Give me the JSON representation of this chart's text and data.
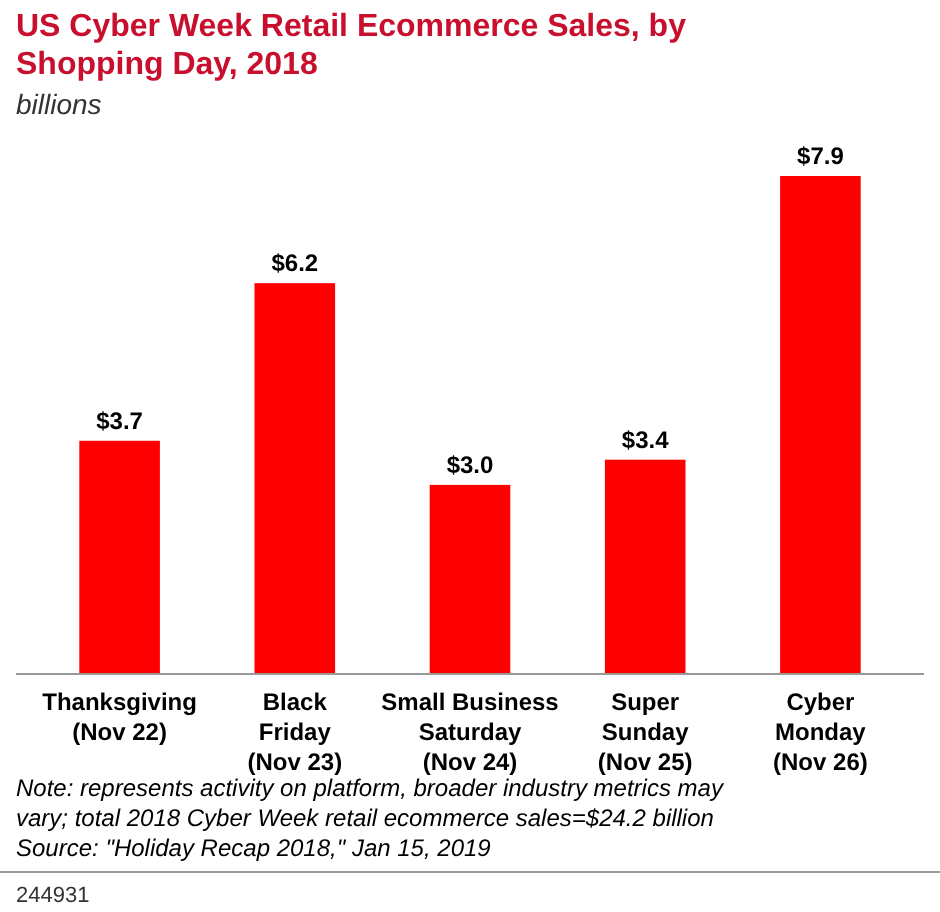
{
  "chart_data": {
    "type": "bar",
    "title": "US Cyber Week Retail Ecommerce Sales, by Shopping Day, 2018",
    "subtitle": "billions",
    "categories": [
      "Thanksgiving\n(Nov 22)",
      "Black\nFriday\n(Nov 23)",
      "Small Business\nSaturday\n(Nov 24)",
      "Super\nSunday\n(Nov 25)",
      "Cyber\nMonday\n(Nov 26)"
    ],
    "values": [
      3.7,
      6.2,
      3.0,
      3.4,
      7.9
    ],
    "value_labels": [
      "$3.7",
      "$6.2",
      "$3.0",
      "$3.4",
      "$7.9"
    ],
    "color": "#ff0000",
    "annotations": [
      "Note: represents activity on platform, broader industry metrics may vary; total 2018 Cyber Week retail ecommerce sales=$24.2 billion",
      "Source: \"Holiday Recap 2018,\" Jan 15, 2019",
      "244931"
    ]
  }
}
